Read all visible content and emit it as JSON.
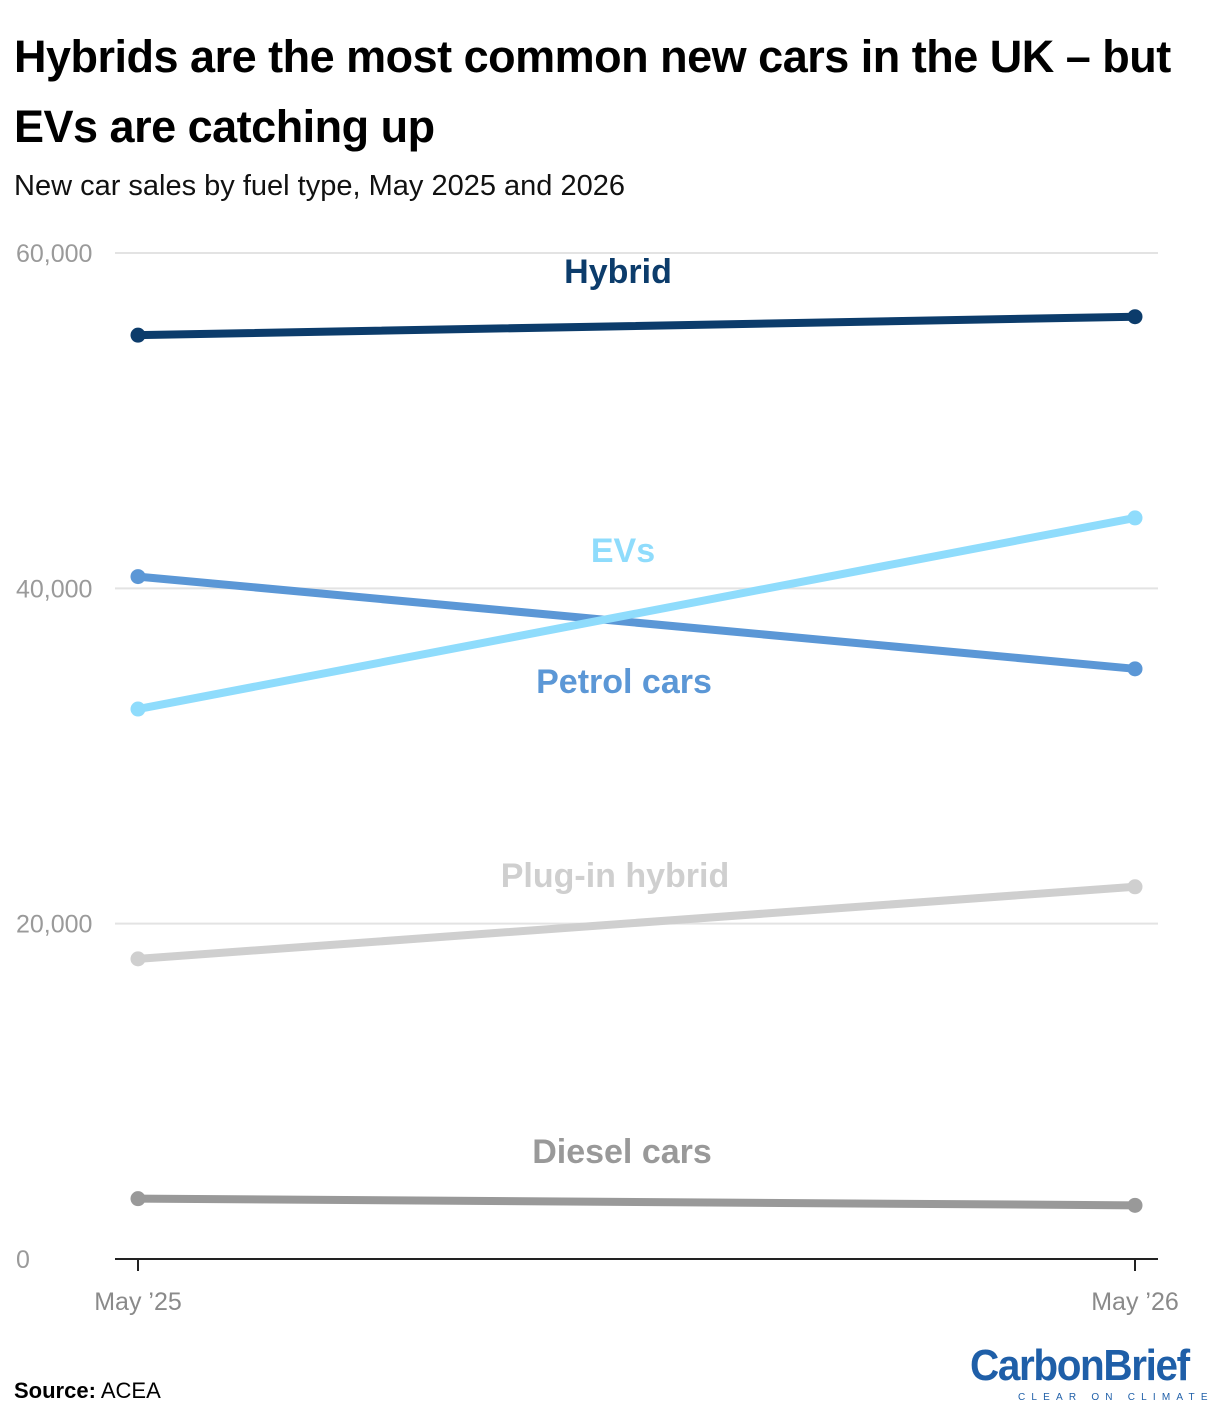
{
  "title": "Hybrids are the most common new cars in the UK – but EVs are catching up",
  "subtitle": "New car sales by fuel type, May 2025 and 2026",
  "source": {
    "label": "Source:",
    "value": "ACEA"
  },
  "logo": {
    "name": "CarbonBrief",
    "tagline": "CLEAR ON CLIMATE"
  },
  "chart_data": {
    "type": "line",
    "x": [
      "May ’25",
      "May ’26"
    ],
    "ylim": [
      0,
      60000
    ],
    "yticks": [
      0,
      20000,
      40000,
      60000
    ],
    "ytick_labels": [
      "0",
      "20,000",
      "40,000",
      "60,000"
    ],
    "grid": true,
    "legend": "inline labels",
    "series": [
      {
        "name": "Hybrid",
        "values": [
          55100,
          56200
        ],
        "color": "#0c3c6b"
      },
      {
        "name": "EVs",
        "values": [
          32800,
          44200
        ],
        "color": "#8fdcfc"
      },
      {
        "name": "Petrol cars",
        "values": [
          40700,
          35200
        ],
        "color": "#5b97d6"
      },
      {
        "name": "Plug-in hybrid",
        "values": [
          17900,
          22200
        ],
        "color": "#cfcfcf"
      },
      {
        "name": "Diesel cars",
        "values": [
          3600,
          3200
        ],
        "color": "#999999"
      }
    ]
  }
}
